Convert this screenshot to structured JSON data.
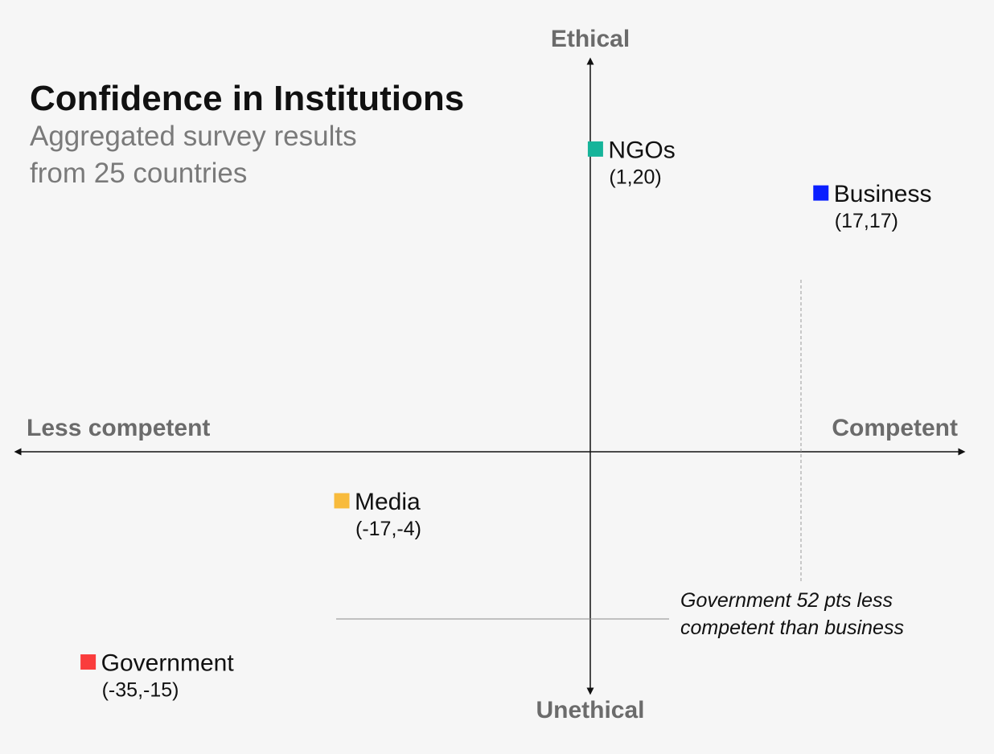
{
  "chart_data": {
    "type": "scatter",
    "title": "Confidence in Institutions",
    "subtitle_lines": [
      "Aggregated survey results",
      "from 25 countries"
    ],
    "axis_labels": {
      "y_positive": "Ethical",
      "y_negative": "Unethical",
      "x_negative": "Less competent",
      "x_positive": "Competent"
    },
    "xlim": [
      -40,
      27
    ],
    "ylim": [
      -17,
      26
    ],
    "grid": false,
    "points": [
      {
        "name": "NGOs",
        "x": 1,
        "y": 20,
        "label": "(1,20)",
        "color": "#16b49a"
      },
      {
        "name": "Business",
        "x": 17,
        "y": 17,
        "label": "(17,17)",
        "color": "#0a1fff"
      },
      {
        "name": "Media",
        "x": -17,
        "y": -4,
        "label": "(-17,-4)",
        "color": "#f8bb3c"
      },
      {
        "name": "Government",
        "x": -35,
        "y": -15,
        "label": "(-35,-15)",
        "color": "#fa3c3c"
      }
    ],
    "annotation": {
      "lines": [
        "Government 52 pts less",
        "competent than business"
      ]
    }
  }
}
